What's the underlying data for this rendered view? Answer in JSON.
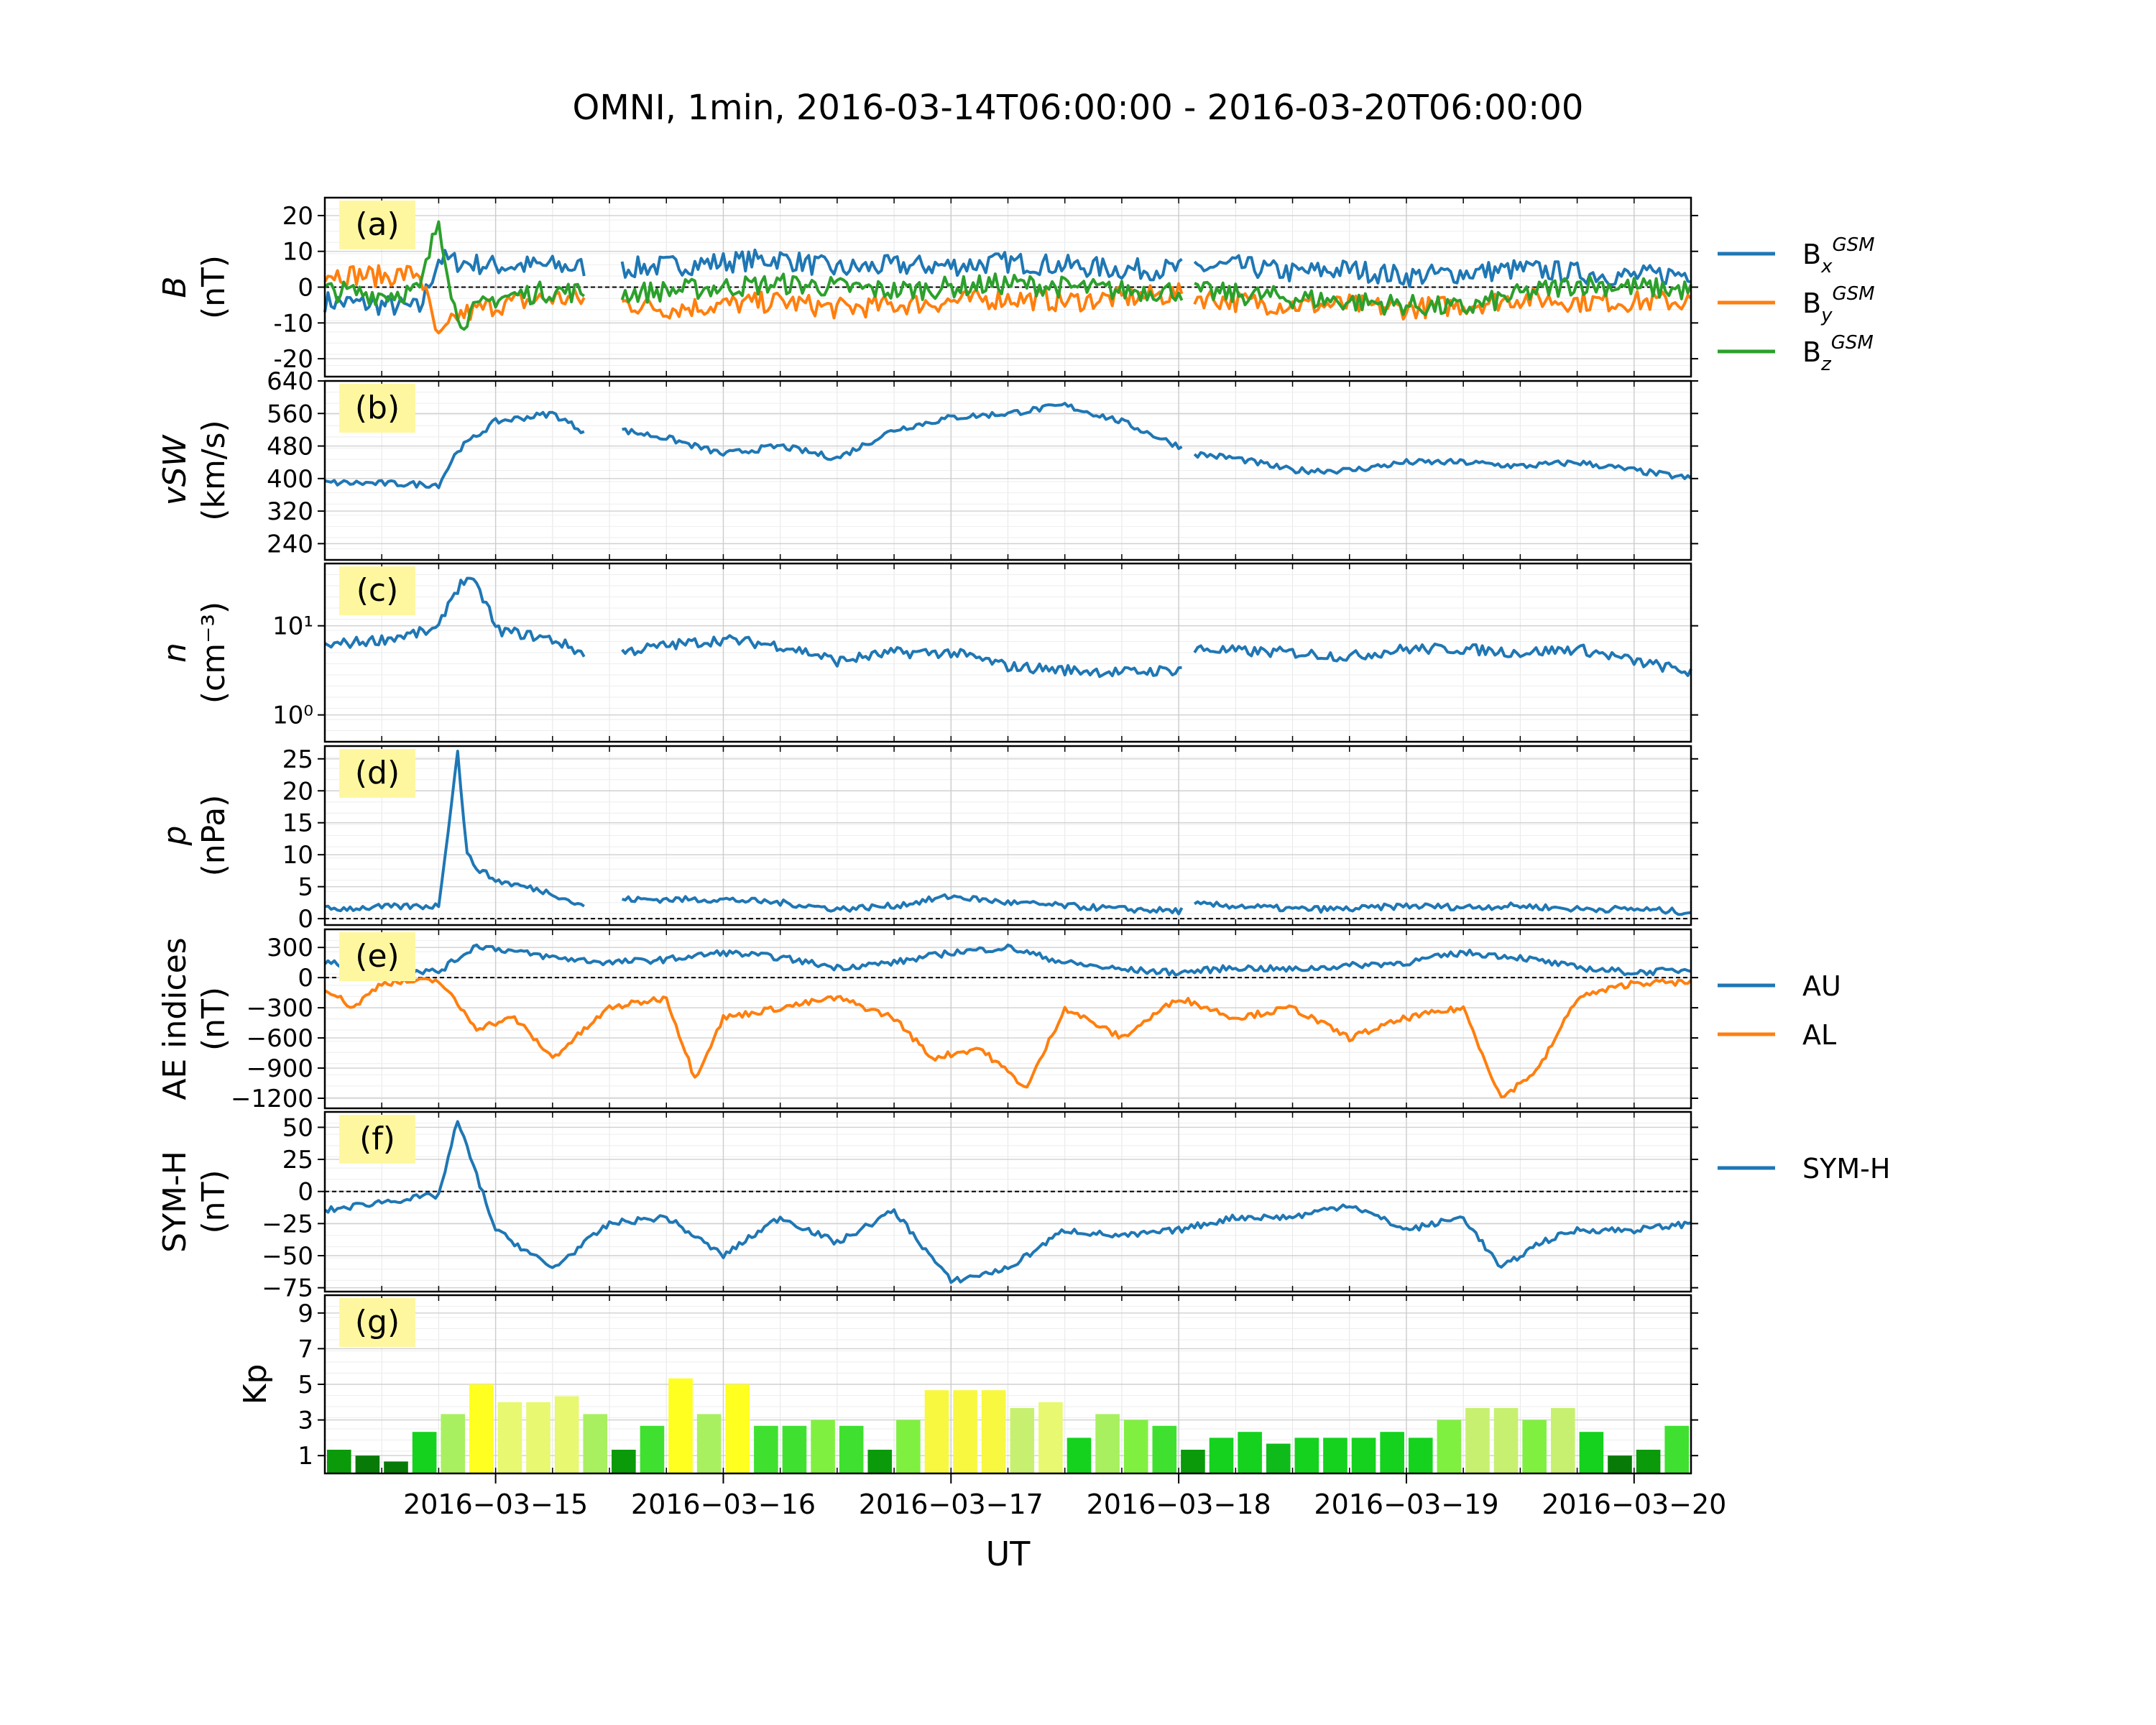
{
  "title": "OMNI, 1min, 2016-03-14T06:00:00 - 2016-03-20T06:00:00",
  "x_label": "UT",
  "x_range": [
    "2016-03-14T06:00:00",
    "2016-03-20T06:00:00"
  ],
  "x_ticks": [
    "2016−03−15",
    "2016−03−16",
    "2016−03−17",
    "2016−03−18",
    "2016−03−19",
    "2016−03−20"
  ],
  "colors": {
    "blue": "#1f77b4",
    "orange": "#ff7f0e",
    "green": "#2ca02c",
    "tag_bg": "#fff7a0"
  },
  "chart_data": [
    {
      "id": "a",
      "tag": "(a)",
      "type": "line",
      "ylabel": [
        "B",
        "(nT)"
      ],
      "ylim": [
        -25,
        25
      ],
      "yticks": [
        "-20",
        "-10",
        "0",
        "10",
        "20"
      ],
      "ytick_values": [
        -20,
        -10,
        0,
        10,
        20
      ],
      "zero_line": true,
      "grid": true,
      "legend": [
        "Bx^GSM",
        "By^GSM",
        "Bz^GSM"
      ],
      "series": [
        {
          "name": "Bx^GSM",
          "color": "#1f77b4",
          "x": [
            "2016-03-14T06:00",
            "2016-03-14T12:00",
            "2016-03-14T16:00",
            "2016-03-14T18:00",
            "2016-03-14T20:00",
            "2016-03-15T00:00",
            "2016-03-15T06:00",
            "2016-03-15T12:00",
            "2016-03-15T18:00",
            "2016-03-16T00:00",
            "2016-03-16T06:00",
            "2016-03-16T12:00",
            "2016-03-16T18:00",
            "2016-03-17T00:00",
            "2016-03-17T06:00",
            "2016-03-17T12:00",
            "2016-03-17T18:00",
            "2016-03-18T00:00",
            "2016-03-18T06:00",
            "2016-03-18T12:00",
            "2016-03-18T18:00",
            "2016-03-19T00:00",
            "2016-03-19T06:00",
            "2016-03-19T12:00",
            "2016-03-19T18:00",
            "2016-03-20T00:00",
            "2016-03-20T06:00"
          ],
          "y": [
            -4,
            -5,
            -6,
            8,
            7,
            6,
            6,
            5,
            6,
            7,
            8,
            5,
            6,
            6,
            7,
            6,
            5,
            5,
            6,
            4,
            5,
            3,
            4,
            5,
            4,
            3,
            4
          ]
        },
        {
          "name": "By^GSM",
          "color": "#ff7f0e",
          "x": [
            "2016-03-14T06:00",
            "2016-03-14T12:00",
            "2016-03-14T16:00",
            "2016-03-14T18:00",
            "2016-03-14T20:00",
            "2016-03-15T00:00",
            "2016-03-15T06:00",
            "2016-03-15T12:00",
            "2016-03-15T18:00",
            "2016-03-16T00:00",
            "2016-03-16T06:00",
            "2016-03-16T12:00",
            "2016-03-16T18:00",
            "2016-03-17T00:00",
            "2016-03-17T06:00",
            "2016-03-17T12:00",
            "2016-03-17T18:00",
            "2016-03-18T00:00",
            "2016-03-18T06:00",
            "2016-03-18T12:00",
            "2016-03-18T18:00",
            "2016-03-19T00:00",
            "2016-03-19T06:00",
            "2016-03-19T12:00",
            "2016-03-19T18:00",
            "2016-03-20T00:00",
            "2016-03-20T06:00"
          ],
          "y": [
            4,
            3,
            4,
            -15,
            -8,
            -5,
            -3,
            -4,
            -6,
            -5,
            -4,
            -6,
            -5,
            -4,
            -3,
            -4,
            -3,
            -2,
            -4,
            -5,
            -5,
            -6,
            -5,
            -3,
            -4,
            -4,
            -4
          ]
        },
        {
          "name": "Bz^GSM",
          "color": "#2ca02c",
          "x": [
            "2016-03-14T06:00",
            "2016-03-14T12:00",
            "2016-03-14T16:00",
            "2016-03-14T18:00",
            "2016-03-14T20:00",
            "2016-03-15T00:00",
            "2016-03-15T06:00",
            "2016-03-15T12:00",
            "2016-03-15T18:00",
            "2016-03-16T00:00",
            "2016-03-16T06:00",
            "2016-03-16T12:00",
            "2016-03-16T18:00",
            "2016-03-17T00:00",
            "2016-03-17T06:00",
            "2016-03-17T12:00",
            "2016-03-17T18:00",
            "2016-03-18T00:00",
            "2016-03-18T06:00",
            "2016-03-18T12:00",
            "2016-03-18T18:00",
            "2016-03-19T00:00",
            "2016-03-19T06:00",
            "2016-03-19T12:00",
            "2016-03-19T18:00",
            "2016-03-20T00:00",
            "2016-03-20T06:00"
          ],
          "y": [
            -1,
            -2,
            -1,
            19,
            -10,
            -3,
            -1,
            -2,
            -1,
            0,
            1,
            0,
            -1,
            0,
            1,
            0,
            -1,
            -1,
            -2,
            -3,
            -4,
            -5,
            -6,
            -2,
            1,
            0,
            -1
          ]
        }
      ],
      "gaps": [
        [
          "2016-03-15T09:30",
          "2016-03-15T13:00"
        ],
        [
          "2016-03-18T00:30",
          "2016-03-18T01:30"
        ]
      ]
    },
    {
      "id": "b",
      "tag": "(b)",
      "type": "line",
      "ylabel": [
        "vSW",
        "(km/s)"
      ],
      "ylim": [
        200,
        640
      ],
      "yticks": [
        "240",
        "320",
        "400",
        "480",
        "560",
        "640"
      ],
      "ytick_values": [
        240,
        320,
        400,
        480,
        560,
        640
      ],
      "zero_line": false,
      "grid": true,
      "series": [
        {
          "name": "",
          "color": "#1f77b4",
          "x": [
            "2016-03-14T06:00",
            "2016-03-14T12:00",
            "2016-03-14T18:00",
            "2016-03-14T20:00",
            "2016-03-15T00:00",
            "2016-03-15T06:00",
            "2016-03-15T09:00",
            "2016-03-15T13:00",
            "2016-03-15T18:00",
            "2016-03-16T00:00",
            "2016-03-16T06:00",
            "2016-03-16T12:00",
            "2016-03-16T18:00",
            "2016-03-17T00:00",
            "2016-03-17T06:00",
            "2016-03-17T12:00",
            "2016-03-17T18:00",
            "2016-03-18T00:00",
            "2016-03-18T02:00",
            "2016-03-18T06:00",
            "2016-03-18T12:00",
            "2016-03-18T18:00",
            "2016-03-19T00:00",
            "2016-03-19T06:00",
            "2016-03-19T12:00",
            "2016-03-19T18:00",
            "2016-03-20T00:00",
            "2016-03-20T06:00"
          ],
          "y": [
            390,
            388,
            385,
            470,
            540,
            560,
            520,
            520,
            500,
            460,
            480,
            450,
            520,
            550,
            560,
            580,
            540,
            480,
            460,
            450,
            420,
            420,
            440,
            440,
            430,
            440,
            420,
            400
          ]
        }
      ],
      "gaps": [
        [
          "2016-03-15T09:30",
          "2016-03-15T13:00"
        ],
        [
          "2016-03-18T00:30",
          "2016-03-18T01:30"
        ]
      ]
    },
    {
      "id": "c",
      "tag": "(c)",
      "type": "line",
      "scale": "log",
      "ylabel": [
        "n",
        "(cm⁻³)"
      ],
      "ylim": [
        0.5,
        50
      ],
      "yticks": [
        "10⁰",
        "10¹"
      ],
      "ytick_values": [
        1,
        10
      ],
      "zero_line": false,
      "grid": true,
      "series": [
        {
          "name": "",
          "color": "#1f77b4",
          "x": [
            "2016-03-14T06:00",
            "2016-03-14T12:00",
            "2016-03-14T18:00",
            "2016-03-14T21:00",
            "2016-03-15T00:00",
            "2016-03-15T06:00",
            "2016-03-15T09:00",
            "2016-03-15T13:00",
            "2016-03-15T18:00",
            "2016-03-16T00:00",
            "2016-03-16T06:00",
            "2016-03-16T12:00",
            "2016-03-16T18:00",
            "2016-03-17T00:00",
            "2016-03-17T06:00",
            "2016-03-17T12:00",
            "2016-03-17T18:00",
            "2016-03-18T00:00",
            "2016-03-18T02:00",
            "2016-03-18T06:00",
            "2016-03-18T12:00",
            "2016-03-18T18:00",
            "2016-03-19T00:00",
            "2016-03-19T06:00",
            "2016-03-19T12:00",
            "2016-03-19T18:00",
            "2016-03-20T00:00",
            "2016-03-20T06:00"
          ],
          "y": [
            6,
            7,
            9,
            35,
            9,
            7,
            5,
            5,
            6,
            7,
            6,
            4,
            5,
            5,
            3.5,
            3.2,
            3,
            3.2,
            5.5,
            5.2,
            5,
            4.5,
            5.5,
            5.5,
            5,
            5.5,
            4,
            3
          ]
        }
      ],
      "gaps": [
        [
          "2016-03-15T09:30",
          "2016-03-15T13:00"
        ],
        [
          "2016-03-18T00:30",
          "2016-03-18T01:30"
        ]
      ]
    },
    {
      "id": "d",
      "tag": "(d)",
      "type": "line",
      "ylabel": [
        "p",
        "(nPa)"
      ],
      "ylim": [
        -1,
        27
      ],
      "yticks": [
        "0",
        "5",
        "10",
        "15",
        "20",
        "25"
      ],
      "ytick_values": [
        0,
        5,
        10,
        15,
        20,
        25
      ],
      "zero_line": true,
      "grid": true,
      "series": [
        {
          "name": "",
          "color": "#1f77b4",
          "x": [
            "2016-03-14T06:00",
            "2016-03-14T12:00",
            "2016-03-14T18:00",
            "2016-03-14T20:00",
            "2016-03-14T21:00",
            "2016-03-14T22:00",
            "2016-03-15T00:00",
            "2016-03-15T06:00",
            "2016-03-15T09:00",
            "2016-03-15T13:00",
            "2016-03-15T18:00",
            "2016-03-16T00:00",
            "2016-03-16T06:00",
            "2016-03-16T12:00",
            "2016-03-16T18:00",
            "2016-03-17T00:00",
            "2016-03-17T06:00",
            "2016-03-17T12:00",
            "2016-03-17T18:00",
            "2016-03-18T00:00",
            "2016-03-18T02:00",
            "2016-03-18T06:00",
            "2016-03-18T12:00",
            "2016-03-18T18:00",
            "2016-03-19T00:00",
            "2016-03-19T06:00",
            "2016-03-19T12:00",
            "2016-03-19T18:00",
            "2016-03-20T00:00",
            "2016-03-20T06:00"
          ],
          "y": [
            1.5,
            1.8,
            2,
            26,
            10,
            8,
            6,
            4,
            2,
            3,
            3,
            3,
            2.5,
            1.5,
            2,
            3.5,
            2.5,
            2,
            1.5,
            1.2,
            2.2,
            2,
            1.5,
            1.5,
            2,
            1.8,
            2,
            1.5,
            1.5,
            1
          ]
        }
      ],
      "gaps": [
        [
          "2016-03-15T09:30",
          "2016-03-15T13:00"
        ],
        [
          "2016-03-18T00:30",
          "2016-03-18T01:30"
        ]
      ]
    },
    {
      "id": "e",
      "tag": "(e)",
      "type": "line",
      "ylabel": [
        "AE indices",
        "(nT)"
      ],
      "ylim": [
        -1300,
        480
      ],
      "yticks": [
        "−1200",
        "−900",
        "−600",
        "−300",
        "0",
        "300"
      ],
      "ytick_values": [
        -1200,
        -900,
        -600,
        -300,
        0,
        300
      ],
      "zero_line": true,
      "grid": true,
      "legend": [
        "AU",
        "AL"
      ],
      "series": [
        {
          "name": "AU",
          "color": "#1f77b4",
          "x": [
            "2016-03-14T06:00",
            "2016-03-14T12:00",
            "2016-03-14T18:00",
            "2016-03-14T22:00",
            "2016-03-15T06:00",
            "2016-03-15T12:00",
            "2016-03-15T18:00",
            "2016-03-16T00:00",
            "2016-03-16T06:00",
            "2016-03-16T12:00",
            "2016-03-16T18:00",
            "2016-03-17T00:00",
            "2016-03-17T06:00",
            "2016-03-17T12:00",
            "2016-03-17T18:00",
            "2016-03-18T00:00",
            "2016-03-18T06:00",
            "2016-03-18T12:00",
            "2016-03-18T18:00",
            "2016-03-19T00:00",
            "2016-03-19T06:00",
            "2016-03-19T12:00",
            "2016-03-19T18:00",
            "2016-03-20T00:00",
            "2016-03-20T06:00"
          ],
          "y": [
            150,
            80,
            60,
            320,
            200,
            150,
            180,
            250,
            200,
            100,
            150,
            250,
            300,
            150,
            80,
            50,
            100,
            80,
            120,
            150,
            250,
            200,
            100,
            50,
            80
          ]
        },
        {
          "name": "AL",
          "color": "#ff7f0e",
          "x": [
            "2016-03-14T06:00",
            "2016-03-14T09:00",
            "2016-03-14T12:00",
            "2016-03-14T18:00",
            "2016-03-14T22:00",
            "2016-03-15T02:00",
            "2016-03-15T06:00",
            "2016-03-15T12:00",
            "2016-03-15T18:00",
            "2016-03-15T21:00",
            "2016-03-16T00:00",
            "2016-03-16T06:00",
            "2016-03-16T12:00",
            "2016-03-16T18:00",
            "2016-03-16T22:00",
            "2016-03-17T03:00",
            "2016-03-17T08:00",
            "2016-03-17T12:00",
            "2016-03-17T18:00",
            "2016-03-18T00:00",
            "2016-03-18T06:00",
            "2016-03-18T12:00",
            "2016-03-18T18:00",
            "2016-03-19T00:00",
            "2016-03-19T06:00",
            "2016-03-19T10:00",
            "2016-03-19T14:00",
            "2016-03-19T18:00",
            "2016-03-20T00:00",
            "2016-03-20T06:00"
          ],
          "y": [
            -100,
            -300,
            -50,
            -30,
            -500,
            -400,
            -800,
            -300,
            -200,
            -1000,
            -400,
            -300,
            -200,
            -400,
            -800,
            -700,
            -1100,
            -300,
            -600,
            -200,
            -400,
            -300,
            -600,
            -400,
            -300,
            -1200,
            -900,
            -200,
            -50,
            -50
          ]
        }
      ]
    },
    {
      "id": "f",
      "tag": "(f)",
      "type": "line",
      "ylabel": [
        "SYM-H",
        "(nT)"
      ],
      "ylim": [
        -78,
        62
      ],
      "yticks": [
        "−75",
        "−50",
        "−25",
        "0",
        "25",
        "50"
      ],
      "ytick_values": [
        -75,
        -50,
        -25,
        0,
        25,
        50
      ],
      "zero_line": true,
      "grid": true,
      "legend": [
        "SYM-H"
      ],
      "series": [
        {
          "name": "SYM-H",
          "color": "#1f77b4",
          "x": [
            "2016-03-14T06:00",
            "2016-03-14T12:00",
            "2016-03-14T18:00",
            "2016-03-14T20:00",
            "2016-03-15T00:00",
            "2016-03-15T06:00",
            "2016-03-15T12:00",
            "2016-03-15T18:00",
            "2016-03-16T00:00",
            "2016-03-16T06:00",
            "2016-03-16T12:00",
            "2016-03-16T18:00",
            "2016-03-17T00:00",
            "2016-03-17T06:00",
            "2016-03-17T12:00",
            "2016-03-17T18:00",
            "2016-03-18T00:00",
            "2016-03-18T06:00",
            "2016-03-18T12:00",
            "2016-03-18T18:00",
            "2016-03-19T00:00",
            "2016-03-19T06:00",
            "2016-03-19T10:00",
            "2016-03-19T14:00",
            "2016-03-19T18:00",
            "2016-03-20T00:00",
            "2016-03-20T06:00"
          ],
          "y": [
            -15,
            -8,
            -3,
            55,
            -30,
            -60,
            -25,
            -20,
            -50,
            -20,
            -40,
            -15,
            -70,
            -60,
            -30,
            -35,
            -30,
            -20,
            -20,
            -10,
            -30,
            -20,
            -60,
            -40,
            -30,
            -30,
            -25
          ]
        }
      ]
    },
    {
      "id": "g",
      "tag": "(g)",
      "type": "bar",
      "ylabel": [
        "Kp"
      ],
      "ylim": [
        0,
        10
      ],
      "yticks": [
        "1",
        "3",
        "5",
        "7",
        "9"
      ],
      "ytick_values": [
        1,
        3,
        5,
        7,
        9
      ],
      "zero_line": false,
      "grid": true,
      "bar_width_hours": 3,
      "values": [
        1.33,
        1.0,
        0.67,
        2.33,
        3.33,
        5.0,
        4.0,
        4.0,
        4.33,
        3.33,
        1.33,
        2.67,
        5.33,
        3.33,
        5.0,
        2.67,
        2.67,
        3.0,
        2.67,
        1.33,
        3.0,
        4.67,
        4.67,
        4.67,
        3.67,
        4.0,
        2.0,
        3.33,
        3.0,
        2.67,
        1.33,
        2.0,
        2.33,
        1.67,
        2.0,
        2.0,
        2.0,
        2.33,
        2.0,
        3.0,
        3.67,
        3.67,
        3.0,
        3.67,
        2.33,
        1.0,
        1.33,
        2.67
      ]
    }
  ]
}
